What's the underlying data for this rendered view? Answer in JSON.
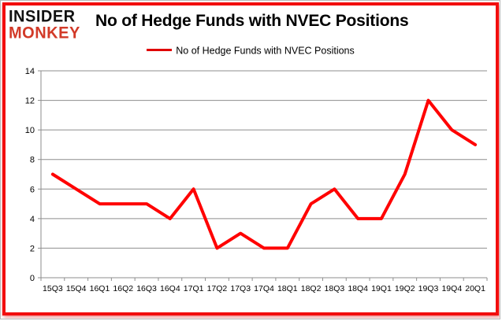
{
  "logo": {
    "line1": "INSIDER",
    "line2": "MONKEY",
    "line1_color": "#111111",
    "line2_color": "#d23a28"
  },
  "header": {
    "title": "No of Hedge Funds with NVEC Positions"
  },
  "legend": {
    "label": "No of Hedge Funds with NVEC Positions",
    "line_color": "#e00000"
  },
  "chart_data": {
    "type": "line",
    "title": "No of Hedge Funds with NVEC Positions",
    "categories": [
      "15Q3",
      "15Q4",
      "16Q1",
      "16Q2",
      "16Q3",
      "16Q4",
      "17Q1",
      "17Q2",
      "17Q3",
      "17Q4",
      "18Q1",
      "18Q2",
      "18Q3",
      "18Q4",
      "19Q1",
      "19Q2",
      "19Q3",
      "19Q4",
      "20Q1"
    ],
    "series": [
      {
        "name": "No of Hedge Funds with NVEC Positions",
        "color": "#ff0000",
        "values": [
          7,
          6,
          5,
          5,
          5,
          4,
          6,
          2,
          3,
          2,
          2,
          5,
          6,
          4,
          4,
          7,
          12,
          10,
          9
        ]
      }
    ],
    "xlabel": "",
    "ylabel": "",
    "ylim": [
      0,
      14
    ],
    "y_ticks": [
      0,
      2,
      4,
      6,
      8,
      10,
      12,
      14
    ],
    "grid": "horizontal",
    "legend_position": "top",
    "colors": {
      "gridline": "#8e8e8e",
      "axis": "#8e8e8e",
      "tick_label": "#000000",
      "card_border": "#f20d0d"
    }
  }
}
